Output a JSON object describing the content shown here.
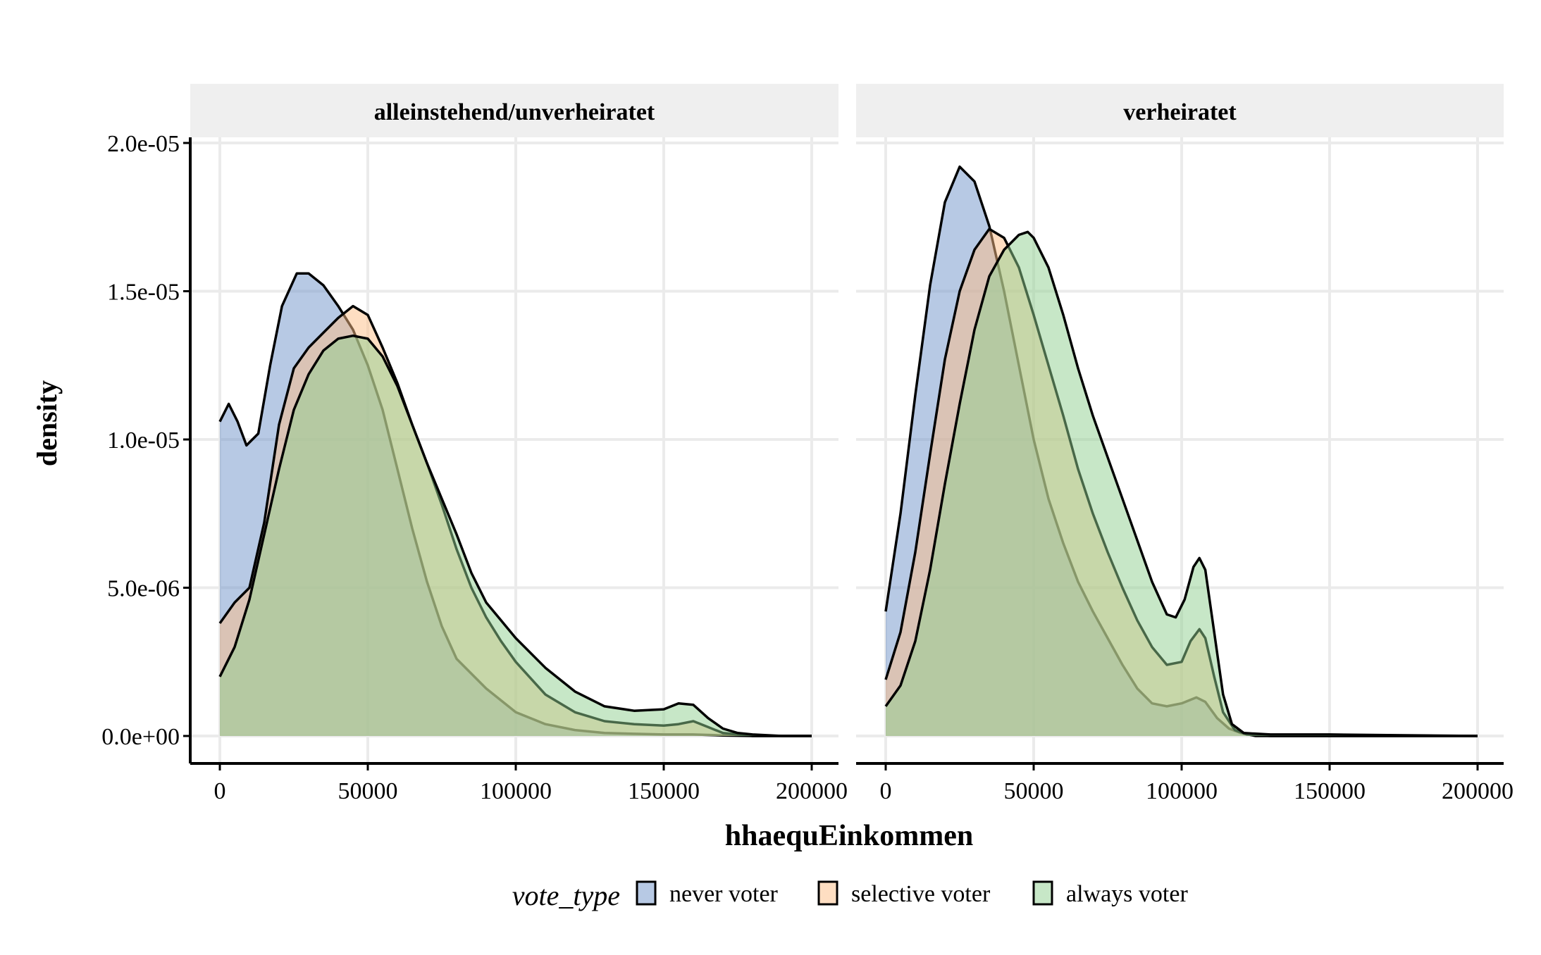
{
  "chart_data": {
    "type": "area",
    "subtype": "density",
    "ylabel": "density",
    "xlabel": "hhaequEinkommen",
    "xlim": [
      0,
      200000
    ],
    "ylim": [
      0,
      2e-05
    ],
    "x_ticks": [
      0,
      50000,
      100000,
      150000,
      200000
    ],
    "x_tick_labels": [
      "0",
      "50000",
      "100000",
      "150000",
      "200000"
    ],
    "y_ticks": [
      0,
      5e-06,
      1e-05,
      1.5e-05,
      2e-05
    ],
    "y_tick_labels": [
      "0.0e+00",
      "5.0e-06",
      "1.0e-05",
      "1.5e-05",
      "2.0e-05"
    ],
    "grid": true,
    "legend": {
      "title": "vote_type",
      "position": "bottom",
      "entries": [
        {
          "label": "never voter",
          "color": "#6f93c9"
        },
        {
          "label": "selective voter",
          "color": "#fdbe85"
        },
        {
          "label": "always voter",
          "color": "#8fd08f"
        }
      ]
    },
    "colors": {
      "never voter": "#6f93c9",
      "selective voter": "#fdbe85",
      "always voter": "#8fd08f",
      "outline": "#000000",
      "strip_background": "#efefef",
      "grid": "#ebebeb"
    },
    "facets": [
      {
        "label": "alleinstehend/unverheiratet",
        "series": [
          {
            "name": "never voter",
            "points": [
              [
                0,
                1.06e-05
              ],
              [
                3000,
                1.12e-05
              ],
              [
                6000,
                1.06e-05
              ],
              [
                9000,
                9.8e-06
              ],
              [
                13000,
                1.02e-05
              ],
              [
                17000,
                1.25e-05
              ],
              [
                21000,
                1.45e-05
              ],
              [
                26000,
                1.56e-05
              ],
              [
                30000,
                1.56e-05
              ],
              [
                35000,
                1.52e-05
              ],
              [
                40000,
                1.45e-05
              ],
              [
                45000,
                1.37e-05
              ],
              [
                50000,
                1.25e-05
              ],
              [
                55000,
                1.1e-05
              ],
              [
                60000,
                9e-06
              ],
              [
                65000,
                7e-06
              ],
              [
                70000,
                5.2e-06
              ],
              [
                75000,
                3.7e-06
              ],
              [
                80000,
                2.6e-06
              ],
              [
                90000,
                1.6e-06
              ],
              [
                100000,
                8e-07
              ],
              [
                110000,
                4e-07
              ],
              [
                120000,
                2e-07
              ],
              [
                130000,
                1e-07
              ],
              [
                150000,
                5e-08
              ],
              [
                160000,
                5e-08
              ],
              [
                170000,
                2e-08
              ],
              [
                180000,
                0
              ],
              [
                200000,
                0
              ]
            ]
          },
          {
            "name": "selective voter",
            "points": [
              [
                0,
                3.8e-06
              ],
              [
                5000,
                4.5e-06
              ],
              [
                10000,
                5e-06
              ],
              [
                15000,
                7.2e-06
              ],
              [
                20000,
                1.05e-05
              ],
              [
                25000,
                1.24e-05
              ],
              [
                30000,
                1.31e-05
              ],
              [
                35000,
                1.36e-05
              ],
              [
                40000,
                1.41e-05
              ],
              [
                45000,
                1.45e-05
              ],
              [
                50000,
                1.42e-05
              ],
              [
                55000,
                1.31e-05
              ],
              [
                60000,
                1.19e-05
              ],
              [
                65000,
                1.05e-05
              ],
              [
                70000,
                9.2e-06
              ],
              [
                75000,
                7.8e-06
              ],
              [
                80000,
                6.3e-06
              ],
              [
                85000,
                5e-06
              ],
              [
                90000,
                4e-06
              ],
              [
                95000,
                3.2e-06
              ],
              [
                100000,
                2.5e-06
              ],
              [
                110000,
                1.4e-06
              ],
              [
                120000,
                8e-07
              ],
              [
                130000,
                5e-07
              ],
              [
                140000,
                4e-07
              ],
              [
                150000,
                3.5e-07
              ],
              [
                155000,
                4e-07
              ],
              [
                160000,
                5e-07
              ],
              [
                165000,
                3e-07
              ],
              [
                170000,
                1e-07
              ],
              [
                180000,
                0
              ],
              [
                200000,
                0
              ]
            ]
          },
          {
            "name": "always voter",
            "points": [
              [
                0,
                2e-06
              ],
              [
                5000,
                3e-06
              ],
              [
                10000,
                4.6e-06
              ],
              [
                15000,
                6.8e-06
              ],
              [
                20000,
                9e-06
              ],
              [
                25000,
                1.1e-05
              ],
              [
                30000,
                1.22e-05
              ],
              [
                35000,
                1.3e-05
              ],
              [
                40000,
                1.34e-05
              ],
              [
                45000,
                1.35e-05
              ],
              [
                50000,
                1.34e-05
              ],
              [
                55000,
                1.28e-05
              ],
              [
                60000,
                1.18e-05
              ],
              [
                65000,
                1.05e-05
              ],
              [
                70000,
                9.2e-06
              ],
              [
                75000,
                8e-06
              ],
              [
                80000,
                6.8e-06
              ],
              [
                85000,
                5.5e-06
              ],
              [
                90000,
                4.5e-06
              ],
              [
                95000,
                3.9e-06
              ],
              [
                100000,
                3.3e-06
              ],
              [
                110000,
                2.3e-06
              ],
              [
                120000,
                1.5e-06
              ],
              [
                130000,
                1e-06
              ],
              [
                140000,
                8.5e-07
              ],
              [
                150000,
                9e-07
              ],
              [
                155000,
                1.1e-06
              ],
              [
                160000,
                1.05e-06
              ],
              [
                165000,
                6e-07
              ],
              [
                170000,
                2.5e-07
              ],
              [
                175000,
                1e-07
              ],
              [
                180000,
                5e-08
              ],
              [
                190000,
                0
              ],
              [
                200000,
                0
              ]
            ]
          }
        ]
      },
      {
        "label": "verheiratet",
        "series": [
          {
            "name": "never voter",
            "points": [
              [
                0,
                4.2e-06
              ],
              [
                5000,
                7.5e-06
              ],
              [
                10000,
                1.15e-05
              ],
              [
                15000,
                1.52e-05
              ],
              [
                20000,
                1.8e-05
              ],
              [
                25000,
                1.92e-05
              ],
              [
                30000,
                1.87e-05
              ],
              [
                35000,
                1.72e-05
              ],
              [
                40000,
                1.5e-05
              ],
              [
                45000,
                1.25e-05
              ],
              [
                50000,
                1e-05
              ],
              [
                55000,
                8e-06
              ],
              [
                60000,
                6.5e-06
              ],
              [
                65000,
                5.2e-06
              ],
              [
                70000,
                4.2e-06
              ],
              [
                75000,
                3.3e-06
              ],
              [
                80000,
                2.4e-06
              ],
              [
                85000,
                1.6e-06
              ],
              [
                90000,
                1.1e-06
              ],
              [
                95000,
                1e-06
              ],
              [
                100000,
                1.1e-06
              ],
              [
                105000,
                1.3e-06
              ],
              [
                108000,
                1.15e-06
              ],
              [
                112000,
                6e-07
              ],
              [
                116000,
                2.5e-07
              ],
              [
                120000,
                1e-07
              ],
              [
                125000,
                0
              ],
              [
                200000,
                0
              ]
            ]
          },
          {
            "name": "selective voter",
            "points": [
              [
                0,
                1.9e-06
              ],
              [
                5000,
                3.5e-06
              ],
              [
                10000,
                6.2e-06
              ],
              [
                15000,
                9.5e-06
              ],
              [
                20000,
                1.27e-05
              ],
              [
                25000,
                1.5e-05
              ],
              [
                30000,
                1.64e-05
              ],
              [
                35000,
                1.71e-05
              ],
              [
                40000,
                1.68e-05
              ],
              [
                45000,
                1.58e-05
              ],
              [
                50000,
                1.42e-05
              ],
              [
                55000,
                1.25e-05
              ],
              [
                60000,
                1.08e-05
              ],
              [
                65000,
                9e-06
              ],
              [
                70000,
                7.5e-06
              ],
              [
                75000,
                6.2e-06
              ],
              [
                80000,
                5e-06
              ],
              [
                85000,
                3.9e-06
              ],
              [
                90000,
                3e-06
              ],
              [
                95000,
                2.4e-06
              ],
              [
                100000,
                2.5e-06
              ],
              [
                103000,
                3.2e-06
              ],
              [
                106000,
                3.6e-06
              ],
              [
                108000,
                3.3e-06
              ],
              [
                111000,
                2e-06
              ],
              [
                114000,
                8e-07
              ],
              [
                118000,
                2e-07
              ],
              [
                122000,
                5e-08
              ],
              [
                130000,
                0
              ],
              [
                200000,
                0
              ]
            ]
          },
          {
            "name": "always voter",
            "points": [
              [
                0,
                1e-06
              ],
              [
                5000,
                1.7e-06
              ],
              [
                10000,
                3.2e-06
              ],
              [
                15000,
                5.6e-06
              ],
              [
                20000,
                8.5e-06
              ],
              [
                25000,
                1.12e-05
              ],
              [
                30000,
                1.37e-05
              ],
              [
                35000,
                1.55e-05
              ],
              [
                40000,
                1.64e-05
              ],
              [
                45000,
                1.69e-05
              ],
              [
                48000,
                1.7e-05
              ],
              [
                50000,
                1.68e-05
              ],
              [
                55000,
                1.58e-05
              ],
              [
                60000,
                1.42e-05
              ],
              [
                65000,
                1.24e-05
              ],
              [
                70000,
                1.08e-05
              ],
              [
                75000,
                9.4e-06
              ],
              [
                80000,
                8e-06
              ],
              [
                85000,
                6.6e-06
              ],
              [
                90000,
                5.2e-06
              ],
              [
                95000,
                4.1e-06
              ],
              [
                98000,
                4e-06
              ],
              [
                101000,
                4.6e-06
              ],
              [
                104000,
                5.7e-06
              ],
              [
                106000,
                6e-06
              ],
              [
                108000,
                5.6e-06
              ],
              [
                111000,
                3.5e-06
              ],
              [
                114000,
                1.4e-06
              ],
              [
                117000,
                4e-07
              ],
              [
                121000,
                1e-07
              ],
              [
                130000,
                5e-08
              ],
              [
                150000,
                5e-08
              ],
              [
                200000,
                0
              ]
            ]
          }
        ]
      }
    ]
  }
}
